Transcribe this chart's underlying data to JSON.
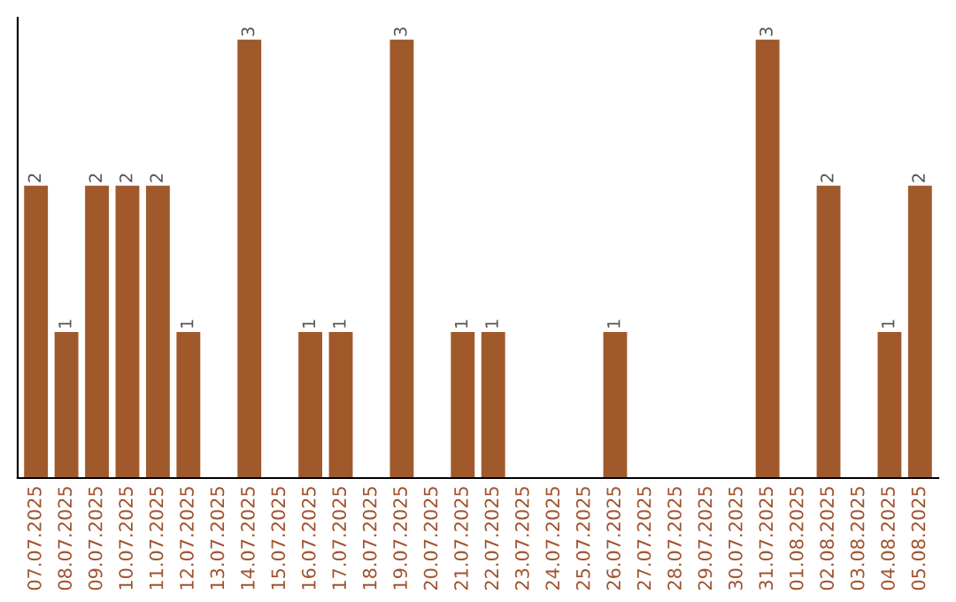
{
  "chart_data": {
    "type": "bar",
    "categories": [
      "07.07.2025",
      "08.07.2025",
      "09.07.2025",
      "10.07.2025",
      "11.07.2025",
      "12.07.2025",
      "13.07.2025",
      "14.07.2025",
      "15.07.2025",
      "16.07.2025",
      "17.07.2025",
      "18.07.2025",
      "19.07.2025",
      "20.07.2025",
      "21.07.2025",
      "22.07.2025",
      "23.07.2025",
      "24.07.2025",
      "25.07.2025",
      "26.07.2025",
      "27.07.2025",
      "28.07.2025",
      "29.07.2025",
      "30.07.2025",
      "31.07.2025",
      "01.08.2025",
      "02.08.2025",
      "03.08.2025",
      "04.08.2025",
      "05.08.2025"
    ],
    "values": [
      2,
      1,
      2,
      2,
      2,
      1,
      0,
      3,
      0,
      1,
      1,
      0,
      3,
      0,
      1,
      1,
      0,
      0,
      0,
      1,
      0,
      0,
      0,
      0,
      3,
      0,
      2,
      0,
      1,
      2
    ],
    "value_labels": [
      "2",
      "1",
      "2",
      "2",
      "2",
      "1",
      null,
      "3",
      null,
      "1",
      "1",
      null,
      "3",
      null,
      "1",
      "1",
      null,
      null,
      null,
      "1",
      null,
      null,
      null,
      null,
      "3",
      null,
      "2",
      null,
      "1",
      "2"
    ],
    "color": "#a0592b",
    "tick_labels": "x",
    "grid": false,
    "legend": false
  }
}
